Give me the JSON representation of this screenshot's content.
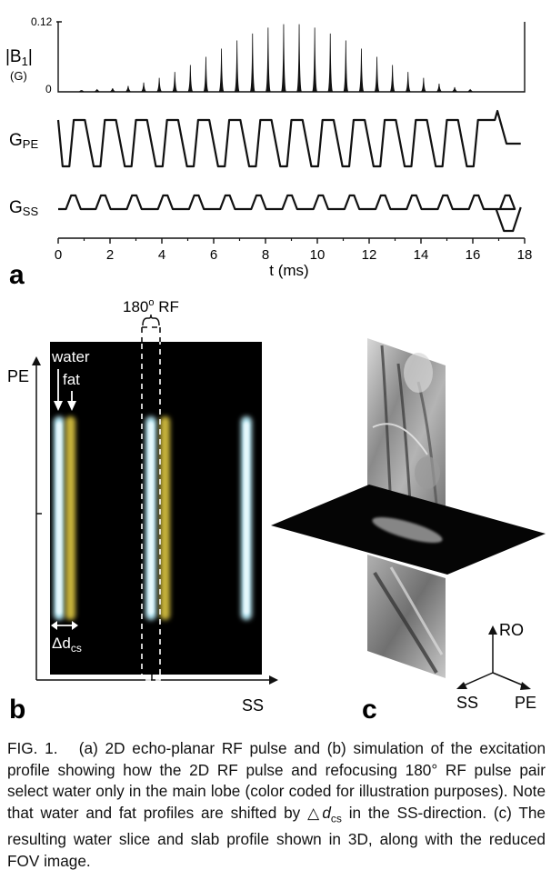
{
  "panel_a": {
    "label": "a",
    "ylabel_b1": "|B",
    "ylabel_b1_sub": "1",
    "ylabel_b1_unit": "(G)",
    "ytick_top": "0.12",
    "ytick_zero": "0",
    "label_gpe": "G",
    "label_gpe_sub": "PE",
    "label_gss": "G",
    "label_gss_sub": "SS",
    "xlabel": "t (ms)",
    "xticks": [
      "0",
      "2",
      "4",
      "6",
      "8",
      "10",
      "12",
      "14",
      "16",
      "18"
    ]
  },
  "chart_data": {
    "type": "line",
    "xlabel": "t (ms)",
    "ylabel": "|B1| (G)",
    "xlim": [
      0,
      18
    ],
    "ylim": [
      0,
      0.12
    ],
    "series": [
      {
        "name": "|B1|",
        "x": [
          0.9,
          1.5,
          2.1,
          2.7,
          3.3,
          3.9,
          4.5,
          5.1,
          5.7,
          6.3,
          6.9,
          7.5,
          8.1,
          8.7,
          9.3,
          9.9,
          10.5,
          11.1,
          11.7,
          12.3,
          12.9,
          13.5,
          14.1,
          14.7,
          15.3,
          15.9
        ],
        "y": [
          0.002,
          0.004,
          0.006,
          0.01,
          0.016,
          0.024,
          0.034,
          0.046,
          0.06,
          0.074,
          0.088,
          0.1,
          0.11,
          0.116,
          0.116,
          0.11,
          0.1,
          0.088,
          0.074,
          0.06,
          0.046,
          0.034,
          0.024,
          0.014,
          0.008,
          0.004
        ]
      }
    ]
  },
  "panel_b": {
    "label": "b",
    "pe_axis": "PE",
    "ss_axis": "SS",
    "rf_label": "180",
    "rf_degree": "o",
    "rf_suffix": " RF",
    "water": "water",
    "fat": "fat",
    "delta": "Δd",
    "delta_sub": "cs",
    "colors": {
      "water": "#b8e8f4",
      "fat": "#c8b43a"
    }
  },
  "panel_c": {
    "label": "c",
    "ro": "RO",
    "ss": "SS",
    "pe": "PE"
  },
  "caption": {
    "fig": "FIG. 1.",
    "p1": "(a) 2D echo-planar RF pulse and (b) simulation of the excitation profile showing how the 2D RF pulse and refocusing 180° RF pulse pair select water only in the main lobe (color coded for illustration purposes). Note that water and fat profiles are shifted by △",
    "dcs": "d",
    "dcs_sub": "cs",
    "p2": " in the SS-direction. (c) The resulting water slice and slab profile shown in 3D, along with the reduced FOV image."
  }
}
